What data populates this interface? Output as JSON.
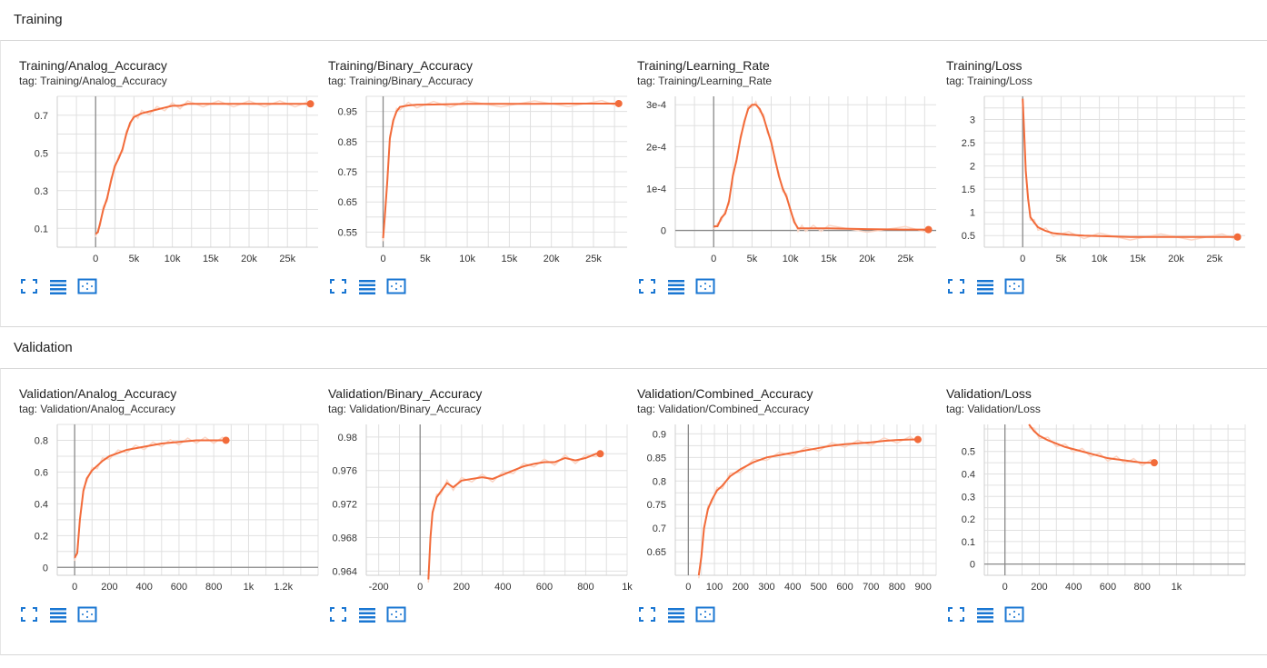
{
  "colors": {
    "line": "#f26b3a",
    "raw": "#fbd6c6",
    "grid": "#e0e0e0",
    "axis": "#8a8a8a",
    "icon": "#1976d2"
  },
  "sections": [
    {
      "title": "Training"
    },
    {
      "title": "Validation"
    }
  ],
  "cards": [
    {
      "title": "Training/Analog_Accuracy",
      "tag": "tag: Training/Analog_Accuracy"
    },
    {
      "title": "Training/Binary_Accuracy",
      "tag": "tag: Training/Binary_Accuracy"
    },
    {
      "title": "Training/Learning_Rate",
      "tag": "tag: Training/Learning_Rate"
    },
    {
      "title": "Training/Loss",
      "tag": "tag: Training/Loss"
    },
    {
      "title": "Validation/Analog_Accuracy",
      "tag": "tag: Validation/Analog_Accuracy"
    },
    {
      "title": "Validation/Binary_Accuracy",
      "tag": "tag: Validation/Binary_Accuracy"
    },
    {
      "title": "Validation/Combined_Accuracy",
      "tag": "tag: Validation/Combined_Accuracy"
    },
    {
      "title": "Validation/Loss",
      "tag": "tag: Validation/Loss"
    }
  ],
  "toolbar_icons": [
    "fullscreen-icon",
    "data-table-icon",
    "fit-domain-icon"
  ],
  "chart_data": [
    {
      "type": "line",
      "title": "Training/Analog_Accuracy",
      "xlim": [
        -5000,
        29000
      ],
      "ylim": [
        0.0,
        0.8
      ],
      "xticks": [
        0,
        5000,
        10000,
        15000,
        20000,
        25000
      ],
      "xticklabels": [
        "0",
        "5k",
        "10k",
        "15k",
        "20k",
        "25k"
      ],
      "yticks": [
        0.1,
        0.3,
        0.5,
        0.7
      ],
      "yticklabels": [
        "0.1",
        "0.3",
        "0.5",
        "0.7"
      ],
      "x": [
        0,
        300,
        600,
        1000,
        1500,
        2000,
        2500,
        3000,
        3500,
        4000,
        4500,
        5000,
        5500,
        6000,
        7000,
        8000,
        9000,
        10000,
        11000,
        12000,
        14000,
        16000,
        18000,
        20000,
        22000,
        24000,
        26000,
        28000
      ],
      "y": [
        0.07,
        0.08,
        0.13,
        0.2,
        0.26,
        0.35,
        0.43,
        0.47,
        0.52,
        0.6,
        0.66,
        0.69,
        0.7,
        0.71,
        0.72,
        0.73,
        0.74,
        0.75,
        0.75,
        0.76,
        0.76,
        0.76,
        0.76,
        0.76,
        0.76,
        0.76,
        0.76,
        0.76
      ]
    },
    {
      "type": "line",
      "title": "Training/Binary_Accuracy",
      "xlim": [
        -2000,
        29000
      ],
      "ylim": [
        0.5,
        1.0
      ],
      "xticks": [
        0,
        5000,
        10000,
        15000,
        20000,
        25000
      ],
      "xticklabels": [
        "0",
        "5k",
        "10k",
        "15k",
        "20k",
        "25k"
      ],
      "yticks": [
        0.55,
        0.65,
        0.75,
        0.85,
        0.95
      ],
      "yticklabels": [
        "0.55",
        "0.65",
        "0.75",
        "0.85",
        "0.95"
      ],
      "x": [
        0,
        200,
        500,
        800,
        1200,
        1600,
        2000,
        3000,
        4000,
        6000,
        8000,
        10000,
        14000,
        18000,
        22000,
        26000,
        28000
      ],
      "y": [
        0.53,
        0.6,
        0.72,
        0.86,
        0.92,
        0.95,
        0.965,
        0.97,
        0.972,
        0.973,
        0.974,
        0.975,
        0.975,
        0.975,
        0.976,
        0.976,
        0.976
      ]
    },
    {
      "type": "line",
      "title": "Training/Learning_Rate",
      "xlim": [
        -5000,
        29000
      ],
      "ylim": [
        -4e-05,
        0.00032
      ],
      "xticks": [
        0,
        5000,
        10000,
        15000,
        20000,
        25000
      ],
      "xticklabels": [
        "0",
        "5k",
        "10k",
        "15k",
        "20k",
        "25k"
      ],
      "yticks": [
        0,
        0.0001,
        0.0002,
        0.0003
      ],
      "yticklabels": [
        "0",
        "1e-4",
        "2e-4",
        "3e-4"
      ],
      "x": [
        0,
        500,
        1000,
        1500,
        2000,
        2500,
        3000,
        3500,
        4000,
        4500,
        5000,
        5500,
        6000,
        6500,
        7000,
        7500,
        8000,
        8500,
        9000,
        9500,
        10000,
        10500,
        11000,
        11500,
        12000,
        13000,
        14000,
        15000,
        20000,
        25000,
        28000
      ],
      "y": [
        1e-05,
        1e-05,
        3e-05,
        4e-05,
        7e-05,
        0.00013,
        0.00017,
        0.00022,
        0.00026,
        0.00029,
        0.0003,
        0.0003,
        0.00029,
        0.00027,
        0.00024,
        0.00021,
        0.00017,
        0.00013,
        0.0001,
        8e-05,
        5e-05,
        2e-05,
        5e-06,
        5e-06,
        5e-06,
        5e-06,
        5e-06,
        5e-06,
        3e-06,
        2e-06,
        2e-06
      ]
    },
    {
      "type": "line",
      "title": "Training/Loss",
      "xlim": [
        -5000,
        29000
      ],
      "ylim": [
        0.25,
        3.5
      ],
      "xticks": [
        0,
        5000,
        10000,
        15000,
        20000,
        25000
      ],
      "xticklabels": [
        "0",
        "5k",
        "10k",
        "15k",
        "20k",
        "25k"
      ],
      "yticks": [
        0.5,
        1,
        1.5,
        2,
        2.5,
        3
      ],
      "yticklabels": [
        "0.5",
        "1",
        "1.5",
        "2",
        "2.5",
        "3"
      ],
      "x": [
        0,
        200,
        400,
        700,
        1000,
        1500,
        2000,
        3000,
        4000,
        6000,
        8000,
        10000,
        14000,
        18000,
        22000,
        26000,
        28000
      ],
      "y": [
        3.45,
        2.7,
        1.9,
        1.3,
        0.9,
        0.78,
        0.68,
        0.6,
        0.55,
        0.52,
        0.5,
        0.49,
        0.47,
        0.47,
        0.47,
        0.47,
        0.47
      ]
    },
    {
      "type": "line",
      "title": "Validation/Analog_Accuracy",
      "xlim": [
        -100,
        1400
      ],
      "ylim": [
        -0.05,
        0.9
      ],
      "xticks": [
        0,
        200,
        400,
        600,
        800,
        1000,
        1200
      ],
      "xticklabels": [
        "0",
        "200",
        "400",
        "600",
        "800",
        "1k",
        "1.2k"
      ],
      "yticks": [
        0,
        0.2,
        0.4,
        0.6,
        0.8
      ],
      "yticklabels": [
        "0",
        "0.2",
        "0.4",
        "0.6",
        "0.8"
      ],
      "x": [
        0,
        15,
        30,
        50,
        70,
        100,
        130,
        160,
        200,
        250,
        300,
        350,
        400,
        450,
        500,
        550,
        600,
        650,
        700,
        750,
        800,
        850,
        870
      ],
      "y": [
        0.06,
        0.09,
        0.3,
        0.48,
        0.56,
        0.61,
        0.64,
        0.67,
        0.7,
        0.72,
        0.74,
        0.75,
        0.76,
        0.77,
        0.78,
        0.785,
        0.79,
        0.795,
        0.8,
        0.8,
        0.8,
        0.8,
        0.8
      ]
    },
    {
      "type": "line",
      "title": "Validation/Binary_Accuracy",
      "xlim": [
        -260,
        1000
      ],
      "ylim": [
        0.9635,
        0.9815
      ],
      "xticks": [
        -200,
        0,
        200,
        400,
        600,
        800,
        1000
      ],
      "xticklabels": [
        "-200",
        "0",
        "200",
        "400",
        "600",
        "800",
        "1k"
      ],
      "yticks": [
        0.964,
        0.968,
        0.972,
        0.976,
        0.98
      ],
      "yticklabels": [
        "0.964",
        "0.968",
        "0.972",
        "0.976",
        "0.98"
      ],
      "x": [
        40,
        50,
        60,
        80,
        100,
        130,
        160,
        200,
        250,
        300,
        350,
        400,
        450,
        500,
        550,
        600,
        650,
        700,
        750,
        800,
        850,
        870
      ],
      "y": [
        0.963,
        0.968,
        0.971,
        0.9728,
        0.9735,
        0.9745,
        0.974,
        0.9748,
        0.975,
        0.9752,
        0.975,
        0.9755,
        0.976,
        0.9765,
        0.9768,
        0.977,
        0.977,
        0.9775,
        0.9772,
        0.9775,
        0.978,
        0.978
      ]
    },
    {
      "type": "line",
      "title": "Validation/Combined_Accuracy",
      "xlim": [
        -50,
        950
      ],
      "ylim": [
        0.6,
        0.92
      ],
      "xticks": [
        0,
        100,
        200,
        300,
        400,
        500,
        600,
        700,
        800,
        900
      ],
      "xticklabels": [
        "0",
        "100",
        "200",
        "300",
        "400",
        "500",
        "600",
        "700",
        "800",
        "900"
      ],
      "yticks": [
        0.65,
        0.7,
        0.75,
        0.8,
        0.85,
        0.9
      ],
      "yticklabels": [
        "0.65",
        "0.7",
        "0.75",
        "0.8",
        "0.85",
        "0.9"
      ],
      "x": [
        40,
        50,
        60,
        75,
        90,
        110,
        130,
        160,
        200,
        250,
        300,
        350,
        400,
        450,
        500,
        550,
        600,
        650,
        700,
        750,
        800,
        850,
        880
      ],
      "y": [
        0.6,
        0.64,
        0.7,
        0.74,
        0.76,
        0.78,
        0.79,
        0.81,
        0.825,
        0.84,
        0.85,
        0.855,
        0.86,
        0.865,
        0.87,
        0.875,
        0.878,
        0.88,
        0.882,
        0.885,
        0.887,
        0.888,
        0.888
      ]
    },
    {
      "type": "line",
      "title": "Validation/Loss",
      "xlim": [
        -120,
        1400
      ],
      "ylim": [
        -0.05,
        0.62
      ],
      "xticks": [
        0,
        200,
        400,
        600,
        800,
        1000
      ],
      "xticklabels": [
        "0",
        "200",
        "400",
        "600",
        "800",
        "1k"
      ],
      "yticks": [
        0,
        0.1,
        0.2,
        0.3,
        0.4,
        0.5
      ],
      "yticklabels": [
        "0",
        "0.1",
        "0.2",
        "0.3",
        "0.4",
        "0.5"
      ],
      "x": [
        140,
        170,
        200,
        250,
        300,
        350,
        400,
        450,
        500,
        550,
        600,
        650,
        700,
        750,
        800,
        850,
        870
      ],
      "y": [
        0.62,
        0.59,
        0.57,
        0.55,
        0.535,
        0.52,
        0.51,
        0.5,
        0.49,
        0.48,
        0.47,
        0.465,
        0.46,
        0.455,
        0.45,
        0.45,
        0.45
      ]
    }
  ]
}
